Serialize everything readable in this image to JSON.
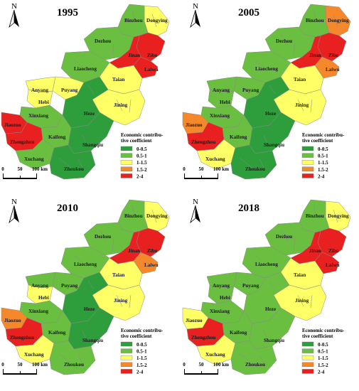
{
  "panels": [
    {
      "year": "1995",
      "fills": {
        "binzhou": "#6abf40",
        "dongying": "#ffff66",
        "dezhou": "#6abf40",
        "jinan": "#e8201f",
        "zibo": "#e8201f",
        "laiwu": "#e8201f",
        "liaocheng": "#6abf40",
        "taian": "#ffff66",
        "jining": "#ffff66",
        "heze": "#2e9e3c",
        "anyang": "#ffff66",
        "puyang": "#ffff66",
        "hebi": "#ffff66",
        "xinxiang": "#6abf40",
        "jiaozuo": "#e8201f",
        "zhengzhou": "#e8201f",
        "kaifeng": "#6abf40",
        "shangqiu": "#2e9e3c",
        "xuchang": "#6abf40",
        "zhoukou": "#2e9e3c"
      }
    },
    {
      "year": "2005",
      "fills": {
        "binzhou": "#6abf40",
        "dongying": "#f5882a",
        "dezhou": "#6abf40",
        "jinan": "#e8201f",
        "zibo": "#e8201f",
        "laiwu": "#f5882a",
        "liaocheng": "#6abf40",
        "taian": "#ffff66",
        "jining": "#ffff66",
        "heze": "#2e9e3c",
        "anyang": "#6abf40",
        "puyang": "#6abf40",
        "hebi": "#6abf40",
        "xinxiang": "#6abf40",
        "jiaozuo": "#f5882a",
        "zhengzhou": "#e8201f",
        "kaifeng": "#6abf40",
        "shangqiu": "#2e9e3c",
        "xuchang": "#ffff66",
        "zhoukou": "#2e9e3c"
      }
    },
    {
      "year": "2010",
      "fills": {
        "binzhou": "#6abf40",
        "dongying": "#ffff66",
        "dezhou": "#6abf40",
        "jinan": "#e8201f",
        "zibo": "#e8201f",
        "laiwu": "#f5882a",
        "liaocheng": "#6abf40",
        "taian": "#ffff66",
        "jining": "#ffff66",
        "heze": "#2e9e3c",
        "anyang": "#6abf40",
        "puyang": "#6abf40",
        "hebi": "#ffff66",
        "xinxiang": "#6abf40",
        "jiaozuo": "#f5882a",
        "zhengzhou": "#e8201f",
        "kaifeng": "#6abf40",
        "shangqiu": "#2e9e3c",
        "xuchang": "#ffff66",
        "zhoukou": "#6abf40"
      }
    },
    {
      "year": "2018",
      "fills": {
        "binzhou": "#6abf40",
        "dongying": "#ffff66",
        "dezhou": "#6abf40",
        "jinan": "#e8201f",
        "zibo": "#e8201f",
        "laiwu": "#e8201f",
        "liaocheng": "#6abf40",
        "taian": "#ffff66",
        "jining": "#ffff66",
        "heze": "#6abf40",
        "anyang": "#6abf40",
        "puyang": "#6abf40",
        "hebi": "#6abf40",
        "xinxiang": "#6abf40",
        "jiaozuo": "#ffff66",
        "zhengzhou": "#e8201f",
        "kaifeng": "#6abf40",
        "shangqiu": "#6abf40",
        "xuchang": "#ffff66",
        "zhoukou": "#6abf40"
      }
    }
  ],
  "cities": {
    "binzhou": "Binzhou",
    "dongying": "Dongying",
    "dezhou": "Dezhou",
    "jinan": "Jinan",
    "zibo": "Zibo",
    "laiwu": "Laiwu",
    "liaocheng": "Liaocheng",
    "taian": "Taian",
    "jining": "Jining",
    "heze": "Heze",
    "anyang": "Anyang",
    "puyang": "Puyang",
    "hebi": "Hebi",
    "xinxiang": "Xinxiang",
    "jiaozuo": "Jiaozuo",
    "zhengzhou": "Zhengzhou",
    "kaifeng": "Kaifeng",
    "shangqiu": "Shangqiu",
    "xuchang": "Xuchang",
    "zhoukou": "Zhoukou"
  },
  "legend": {
    "title_line1": "Economic contribu-",
    "title_line2": "tive coefficient",
    "items": [
      {
        "label": "0-0.5",
        "color": "#2e9e3c"
      },
      {
        "label": "0.5-1",
        "color": "#6abf40"
      },
      {
        "label": "1-1.5",
        "color": "#ffff66"
      },
      {
        "label": "1.5-2",
        "color": "#f5882a"
      },
      {
        "label": "2-4",
        "color": "#e8201f"
      }
    ]
  },
  "north_label": "N",
  "scale_bar": {
    "ticks": [
      "0",
      "50",
      "100 km"
    ]
  }
}
